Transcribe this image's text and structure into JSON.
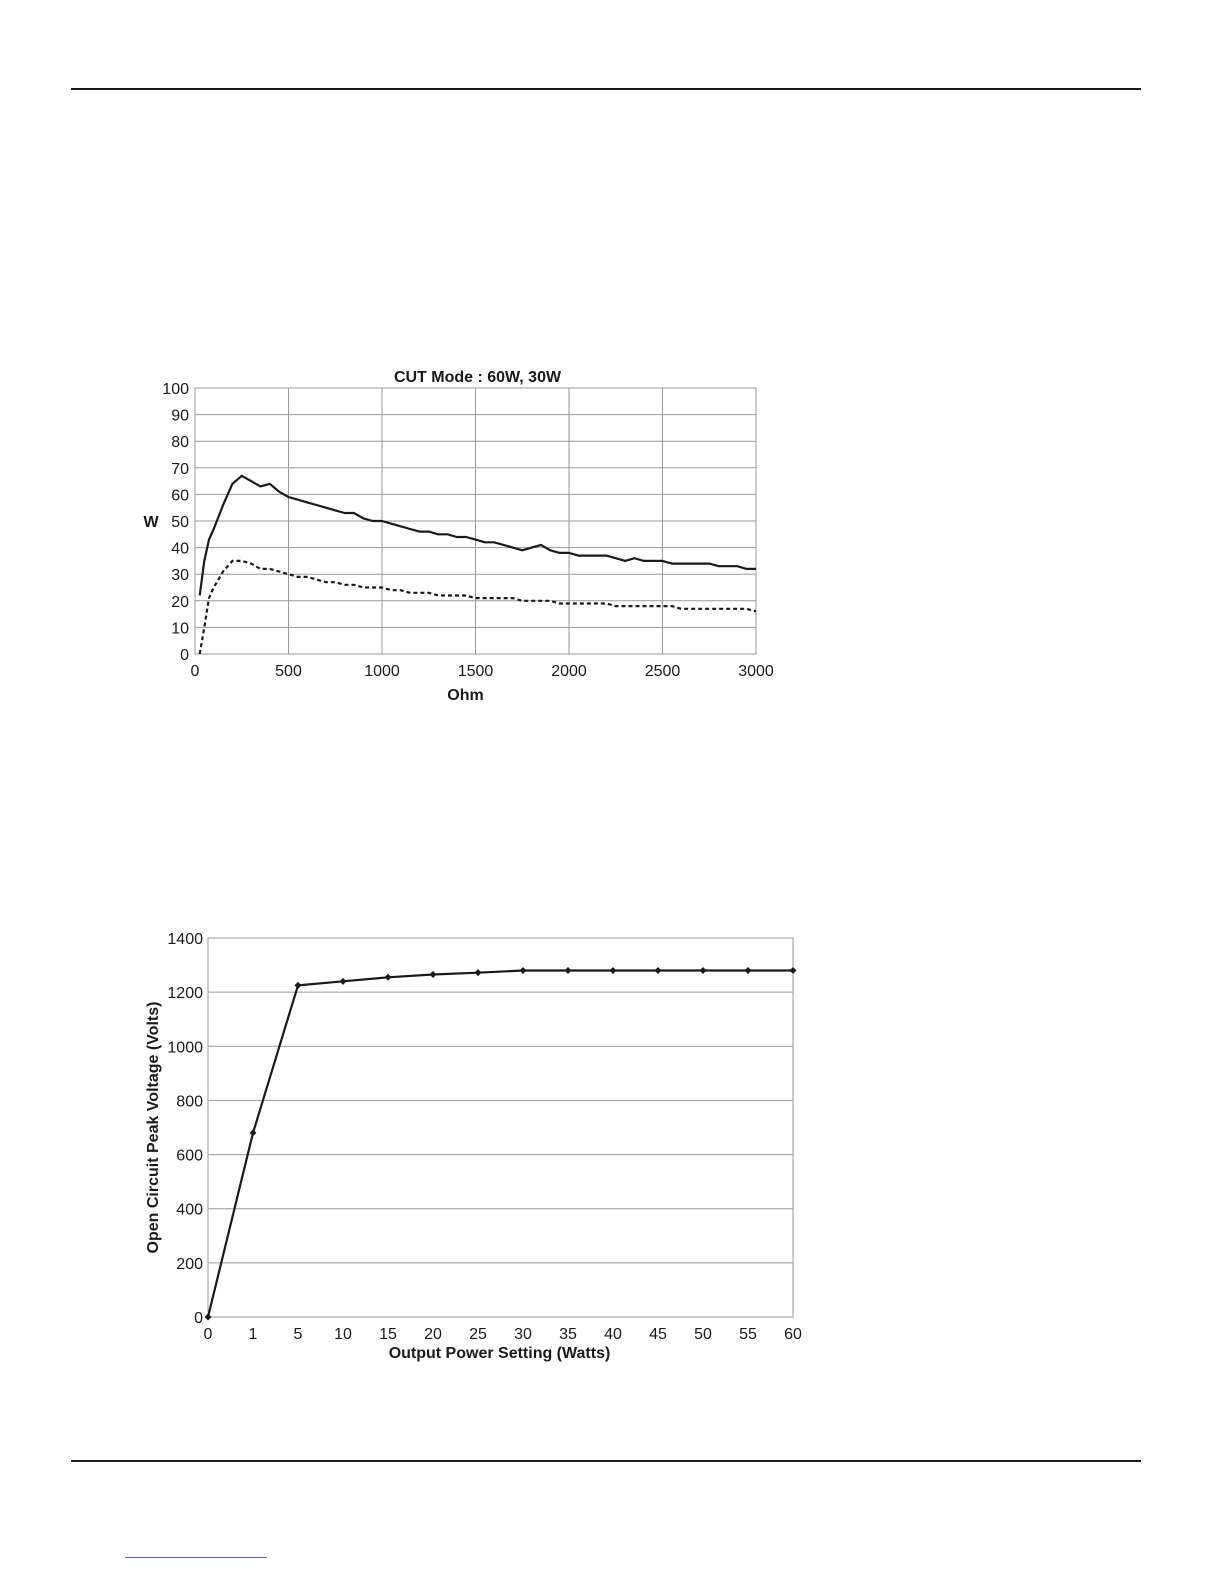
{
  "footer": {
    "link_color": "#4a5fc1"
  },
  "chart_data": [
    {
      "type": "line",
      "title": "CUT Mode : 60W, 30W",
      "xlabel": "Ohm",
      "ylabel": "W",
      "xlim": [
        0,
        3000
      ],
      "ylim": [
        0,
        100
      ],
      "xticks": [
        0,
        500,
        1000,
        1500,
        2000,
        2500,
        3000
      ],
      "yticks": [
        0,
        10,
        20,
        30,
        40,
        50,
        60,
        70,
        80,
        90,
        100
      ],
      "grid": true,
      "series": [
        {
          "style": "solid",
          "color": "#1a1a1a",
          "x": [
            25,
            50,
            75,
            100,
            150,
            200,
            250,
            275,
            300,
            350,
            400,
            450,
            500,
            550,
            600,
            650,
            700,
            750,
            800,
            850,
            900,
            950,
            1000,
            1050,
            1100,
            1150,
            1200,
            1250,
            1300,
            1350,
            1400,
            1450,
            1500,
            1550,
            1600,
            1650,
            1700,
            1750,
            1800,
            1850,
            1900,
            1950,
            2000,
            2050,
            2100,
            2150,
            2200,
            2250,
            2300,
            2350,
            2400,
            2450,
            2500,
            2550,
            2600,
            2650,
            2700,
            2750,
            2800,
            2850,
            2900,
            2950,
            3000
          ],
          "y": [
            22,
            35,
            43,
            47,
            56,
            64,
            67,
            66,
            65,
            63,
            64,
            61,
            59,
            58,
            57,
            56,
            55,
            54,
            53,
            53,
            51,
            50,
            50,
            49,
            48,
            47,
            46,
            46,
            45,
            45,
            44,
            44,
            43,
            42,
            42,
            41,
            40,
            39,
            40,
            41,
            39,
            38,
            38,
            37,
            37,
            37,
            37,
            36,
            35,
            36,
            35,
            35,
            35,
            34,
            34,
            34,
            34,
            34,
            33,
            33,
            33,
            32,
            32
          ]
        },
        {
          "style": "dashed",
          "color": "#1a1a1a",
          "x": [
            25,
            50,
            75,
            100,
            150,
            200,
            250,
            300,
            350,
            400,
            450,
            500,
            550,
            600,
            650,
            700,
            750,
            800,
            850,
            900,
            950,
            1000,
            1050,
            1100,
            1150,
            1200,
            1250,
            1300,
            1350,
            1400,
            1450,
            1500,
            1550,
            1600,
            1650,
            1700,
            1750,
            1800,
            1850,
            1900,
            1950,
            2000,
            2050,
            2100,
            2150,
            2200,
            2250,
            2300,
            2350,
            2400,
            2450,
            2500,
            2550,
            2600,
            2650,
            2700,
            2750,
            2800,
            2850,
            2900,
            2950,
            3000
          ],
          "y": [
            0,
            10,
            21,
            25,
            31,
            35,
            35,
            34,
            32,
            32,
            31,
            30,
            29,
            29,
            28,
            27,
            27,
            26,
            26,
            25,
            25,
            25,
            24,
            24,
            23,
            23,
            23,
            22,
            22,
            22,
            22,
            21,
            21,
            21,
            21,
            21,
            20,
            20,
            20,
            20,
            19,
            19,
            19,
            19,
            19,
            19,
            18,
            18,
            18,
            18,
            18,
            18,
            18,
            17,
            17,
            17,
            17,
            17,
            17,
            17,
            17,
            16
          ]
        }
      ]
    },
    {
      "type": "line",
      "title": "",
      "xlabel": "Output Power Setting (Watts)",
      "ylabel": "Open Circuit Peak Voltage (Volts)",
      "categories": [
        "0",
        "1",
        "5",
        "10",
        "15",
        "20",
        "25",
        "30",
        "35",
        "40",
        "45",
        "50",
        "55",
        "60"
      ],
      "ylim": [
        0,
        1400
      ],
      "yticks": [
        0,
        200,
        400,
        600,
        800,
        1000,
        1200,
        1400
      ],
      "grid": true,
      "markers": true,
      "series": [
        {
          "color": "#1a1a1a",
          "values": [
            0,
            680,
            1225,
            1240,
            1255,
            1265,
            1272,
            1280,
            1280,
            1280,
            1280,
            1280,
            1280,
            1280
          ]
        }
      ]
    }
  ]
}
